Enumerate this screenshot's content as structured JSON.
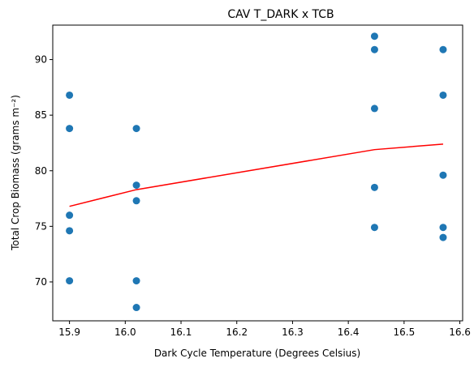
{
  "chart_data": {
    "type": "scatter",
    "title": "CAV T_DARK x TCB",
    "xlabel": "Dark Cycle Temperature (Degrees Celsius)",
    "ylabel": "Total Crop Biomass (grams m⁻²)",
    "xlim": [
      15.87,
      16.605
    ],
    "ylim": [
      66.5,
      93.1
    ],
    "xticks": [
      "15.9",
      "16.0",
      "16.1",
      "16.2",
      "16.3",
      "16.4",
      "16.5",
      "16.6"
    ],
    "yticks": [
      "70",
      "75",
      "80",
      "85",
      "90"
    ],
    "grid": false,
    "colors": {
      "points": "#1f77b4",
      "fit_line": "#ff0000"
    },
    "series": [
      {
        "type": "scatter",
        "x": [
          15.9,
          15.9,
          15.9,
          15.9,
          15.9,
          16.02,
          16.02,
          16.02,
          16.02,
          16.02,
          16.447,
          16.447,
          16.447,
          16.447,
          16.447,
          16.57,
          16.57,
          16.57,
          16.57,
          16.57
        ],
        "y": [
          86.8,
          83.8,
          76.0,
          74.6,
          70.1,
          83.8,
          78.7,
          77.3,
          70.1,
          67.7,
          92.1,
          90.9,
          85.6,
          78.5,
          74.9,
          90.9,
          86.8,
          79.6,
          74.9,
          74.0
        ]
      },
      {
        "type": "line",
        "x": [
          15.9,
          16.02,
          16.447,
          16.57
        ],
        "y": [
          76.8,
          78.3,
          81.9,
          82.4
        ]
      }
    ]
  }
}
